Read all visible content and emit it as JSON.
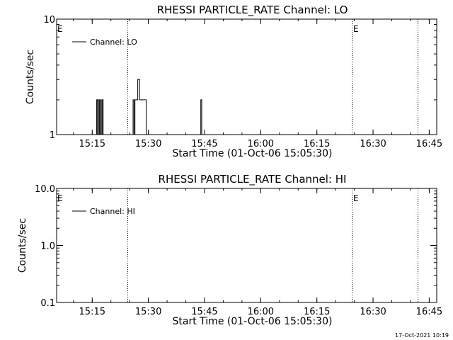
{
  "footer_timestamp": "17-Oct-2021 10:19",
  "chart_data": [
    {
      "type": "line",
      "title": "RHESSI PARTICLE_RATE Channel: LO",
      "xlabel": "Start Time (01-Oct-06 15:05:30)",
      "ylabel": "Counts/sec",
      "xlim": [
        "15:05:30",
        "16:47:00"
      ],
      "ylim": [
        1,
        10
      ],
      "yscale": "log",
      "x_ticks": [
        "15:15",
        "15:30",
        "15:45",
        "16:00",
        "16:15",
        "16:30",
        "16:45"
      ],
      "y_ticks": [
        "1",
        "10"
      ],
      "legend": {
        "entries": [
          "Channel: LO"
        ],
        "placement": "top-left"
      },
      "markers": [
        {
          "time": "15:05:30",
          "label": "E"
        },
        {
          "time": "15:24:30",
          "label": ""
        },
        {
          "time": "16:24:30",
          "label": "E"
        },
        {
          "time": "16:42:00",
          "label": ""
        }
      ],
      "series": [
        {
          "name": "Channel: LO",
          "points": [
            [
              "15:05:30",
              1
            ],
            [
              "15:16:00",
              1
            ],
            [
              "15:16:10",
              2
            ],
            [
              "15:16:25",
              1
            ],
            [
              "15:16:40",
              2
            ],
            [
              "15:16:55",
              1
            ],
            [
              "15:17:10",
              2
            ],
            [
              "15:17:25",
              1
            ],
            [
              "15:17:40",
              2
            ],
            [
              "15:17:55",
              1
            ],
            [
              "15:25:40",
              1
            ],
            [
              "15:25:55",
              2
            ],
            [
              "15:26:10",
              1
            ],
            [
              "15:26:25",
              2
            ],
            [
              "15:27:10",
              3
            ],
            [
              "15:27:40",
              2
            ],
            [
              "15:29:10",
              2
            ],
            [
              "15:29:25",
              1
            ],
            [
              "15:43:45",
              1
            ],
            [
              "15:44:00",
              2
            ],
            [
              "15:44:15",
              1
            ],
            [
              "16:47:00",
              1
            ]
          ]
        }
      ]
    },
    {
      "type": "line",
      "title": "RHESSI PARTICLE_RATE Channel: HI",
      "xlabel": "Start Time (01-Oct-06 15:05:30)",
      "ylabel": "Counts/sec",
      "xlim": [
        "15:05:30",
        "16:47:00"
      ],
      "ylim": [
        0.1,
        10
      ],
      "yscale": "log",
      "x_ticks": [
        "15:15",
        "15:30",
        "15:45",
        "16:00",
        "16:15",
        "16:30",
        "16:45"
      ],
      "y_ticks": [
        "0.1",
        "1.0",
        "10.0"
      ],
      "legend": {
        "entries": [
          "Channel: HI"
        ],
        "placement": "top-left"
      },
      "markers": [
        {
          "time": "15:05:30",
          "label": "E"
        },
        {
          "time": "15:24:30",
          "label": ""
        },
        {
          "time": "16:24:30",
          "label": "E"
        },
        {
          "time": "16:42:00",
          "label": ""
        }
      ],
      "series": [
        {
          "name": "Channel: HI",
          "points": []
        }
      ]
    }
  ]
}
